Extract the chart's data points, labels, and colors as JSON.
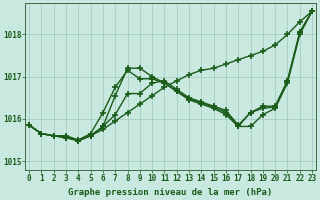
{
  "background_color": "#c8e8e0",
  "grid_color": "#a0c8bc",
  "line_color": "#1a5c1a",
  "marker": "+",
  "markersize": 4,
  "markeredgewidth": 1.2,
  "linewidth": 1.0,
  "xlim": [
    -0.3,
    23.3
  ],
  "ylim": [
    1014.8,
    1018.75
  ],
  "yticks": [
    1015,
    1016,
    1017,
    1018
  ],
  "xtick_labels": [
    "0",
    "1",
    "2",
    "3",
    "4",
    "5",
    "6",
    "7",
    "8",
    "9",
    "10",
    "11",
    "12",
    "13",
    "14",
    "15",
    "16",
    "17",
    "18",
    "19",
    "20",
    "21",
    "22",
    "23"
  ],
  "xlabel": "Graphe pression niveau de la mer (hPa)",
  "tick_fontsize": 5.5,
  "xlabel_fontsize": 6.5,
  "series": [
    [
      1015.85,
      1015.65,
      1015.6,
      1015.6,
      1015.5,
      1015.6,
      1015.75,
      1015.95,
      1016.15,
      1016.35,
      1016.55,
      1016.75,
      1016.9,
      1017.05,
      1017.15,
      1017.2,
      1017.3,
      1017.4,
      1017.5,
      1017.6,
      1017.75,
      1018.0,
      1018.3,
      1018.55
    ],
    [
      1015.85,
      1015.65,
      1015.6,
      1015.55,
      1015.5,
      1015.65,
      1016.15,
      1016.75,
      1017.15,
      1016.95,
      1016.95,
      1016.85,
      1016.65,
      1016.45,
      1016.35,
      1016.25,
      1016.1,
      1015.82,
      1015.82,
      1016.1,
      1016.25,
      1016.85,
      1018.0,
      1018.55
    ],
    [
      1015.85,
      1015.65,
      1015.6,
      1015.58,
      1015.48,
      1015.6,
      1015.82,
      1016.55,
      1017.2,
      1017.2,
      1017.0,
      1016.85,
      1016.65,
      1016.48,
      1016.38,
      1016.28,
      1016.15,
      1015.82,
      1016.15,
      1016.25,
      1016.28,
      1016.9,
      1018.05,
      1018.55
    ],
    [
      1015.85,
      1015.65,
      1015.6,
      1015.55,
      1015.48,
      1015.6,
      1015.82,
      1016.1,
      1016.6,
      1016.6,
      1016.85,
      1016.9,
      1016.7,
      1016.5,
      1016.4,
      1016.3,
      1016.2,
      1015.85,
      1016.15,
      1016.3,
      1016.3,
      1016.9,
      1018.05,
      1018.55
    ]
  ]
}
